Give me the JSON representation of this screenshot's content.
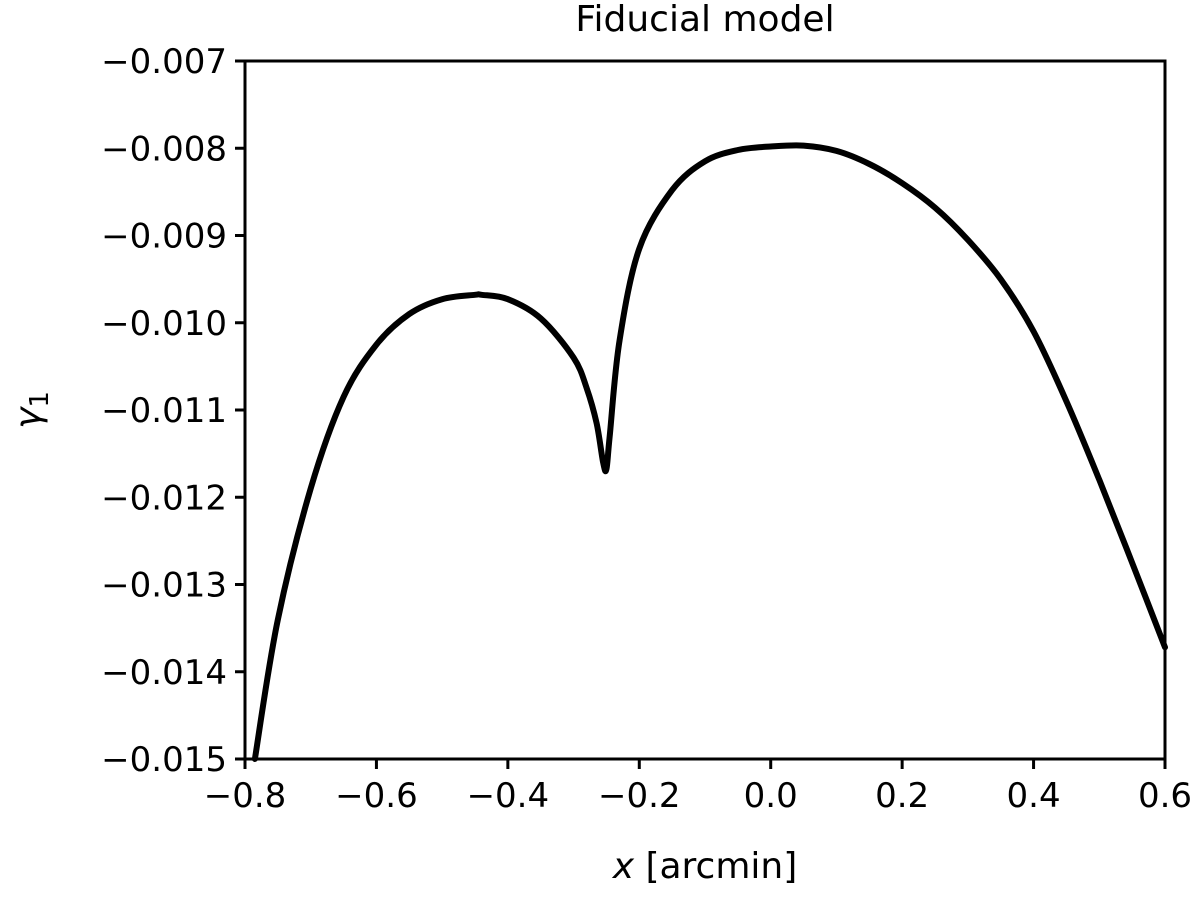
{
  "chart_data": {
    "type": "line",
    "title": "Fiducial model",
    "xlabel_var": "x",
    "xlabel_unit": " [arcmin]",
    "ylabel_var": "γ",
    "ylabel_sub": "1",
    "xlim": [
      -0.8,
      0.6
    ],
    "ylim": [
      -0.015,
      -0.007
    ],
    "xticks": [
      -0.8,
      -0.6,
      -0.4,
      -0.2,
      0.0,
      0.2,
      0.4,
      0.6
    ],
    "xtick_labels": [
      "−0.8",
      "−0.6",
      "−0.4",
      "−0.2",
      "0.0",
      "0.2",
      "0.4",
      "0.6"
    ],
    "yticks": [
      -0.007,
      -0.008,
      -0.009,
      -0.01,
      -0.011,
      -0.012,
      -0.013,
      -0.014,
      -0.015
    ],
    "ytick_labels": [
      "−0.007",
      "−0.008",
      "−0.009",
      "−0.010",
      "−0.011",
      "−0.012",
      "−0.013",
      "−0.014",
      "−0.015"
    ],
    "grid": false,
    "line_color": "#000000",
    "series": [
      {
        "x": [
          -0.785,
          -0.75,
          -0.7,
          -0.65,
          -0.6,
          -0.55,
          -0.5,
          -0.45,
          -0.44,
          -0.4,
          -0.35,
          -0.3,
          -0.28,
          -0.265,
          -0.255,
          -0.25,
          -0.245,
          -0.23,
          -0.2,
          -0.15,
          -0.1,
          -0.05,
          0.0,
          0.05,
          0.1,
          0.15,
          0.2,
          0.25,
          0.3,
          0.35,
          0.4,
          0.45,
          0.5,
          0.55,
          0.6
        ],
        "y": [
          -0.015,
          -0.0134,
          -0.0119,
          -0.01085,
          -0.01025,
          -0.0099,
          -0.00973,
          -0.00968,
          -0.00968,
          -0.00973,
          -0.00995,
          -0.0104,
          -0.01075,
          -0.01115,
          -0.0116,
          -0.01168,
          -0.0113,
          -0.0102,
          -0.00915,
          -0.00848,
          -0.00815,
          -0.00802,
          -0.00798,
          -0.00797,
          -0.00803,
          -0.00818,
          -0.0084,
          -0.00868,
          -0.00905,
          -0.0095,
          -0.0101,
          -0.0109,
          -0.0118,
          -0.01275,
          -0.01372
        ]
      }
    ]
  }
}
